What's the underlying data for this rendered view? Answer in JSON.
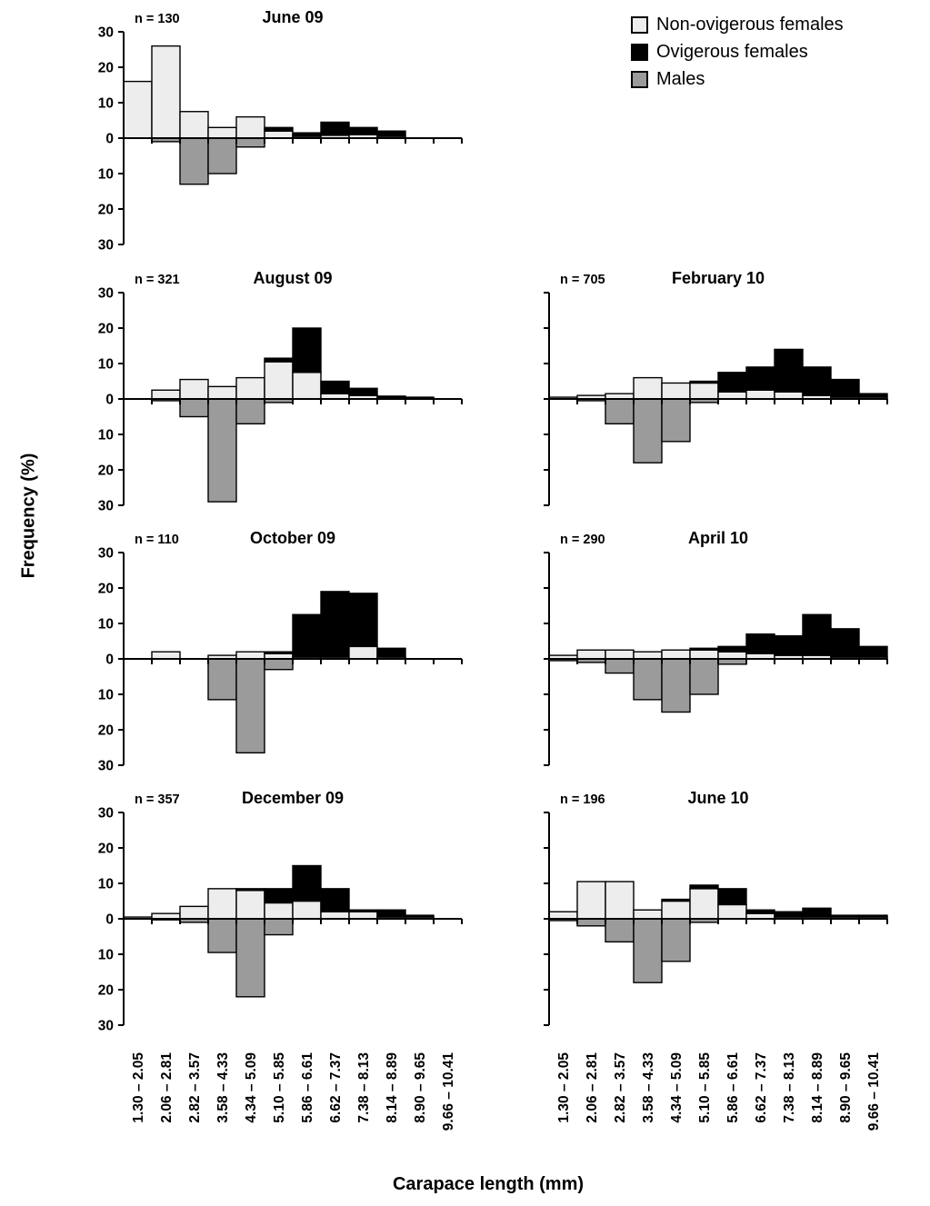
{
  "figure": {
    "legend": [
      {
        "key": "non_ovigerous_females",
        "label": "Non-ovigerous females",
        "color": "#ededed"
      },
      {
        "key": "ovigerous_females",
        "label": "Ovigerous females",
        "color": "#000000"
      },
      {
        "key": "males",
        "label": "Males",
        "color": "#9b9b9b"
      }
    ]
  },
  "chart_data": {
    "type": "bar",
    "subtype": "stacked-population-frequency",
    "xlabel": "Carapace length (mm)",
    "ylabel": "Frequency (%)",
    "ylim": [
      -30,
      30
    ],
    "yticks": [
      30,
      20,
      10,
      0,
      10,
      20,
      30
    ],
    "grid": false,
    "legend_position": "top-right",
    "colors": {
      "non_ovigerous_females": "#ededed",
      "ovigerous_females": "#000000",
      "males": "#9b9b9b"
    },
    "categories": [
      "1.30 – 2.05",
      "2.06 – 2.81",
      "2.82 – 3.57",
      "3.58 – 4.33",
      "4.34 – 5.09",
      "5.10 – 5.85",
      "5.86 – 6.61",
      "6.62 – 7.37",
      "7.38 – 8.13",
      "8.14 – 8.89",
      "8.90 – 9.65",
      "9.66 – 10.41"
    ],
    "panels": [
      {
        "title": "June 09",
        "n_label": "n = 130",
        "n": 130,
        "series": {
          "non_ovigerous_females": [
            16,
            26,
            7.5,
            3,
            6,
            2,
            0.5,
            0.8,
            1,
            0.5,
            0,
            0
          ],
          "ovigerous_females": [
            0,
            0,
            0,
            0,
            0,
            1,
            1,
            3.7,
            2,
            1.5,
            0,
            0
          ],
          "males": [
            0,
            1,
            13,
            10,
            2.5,
            0,
            0,
            0,
            0,
            0,
            0,
            0
          ]
        }
      },
      {
        "title": "August 09",
        "n_label": "n = 321",
        "n": 321,
        "series": {
          "non_ovigerous_females": [
            0,
            2.5,
            5.5,
            3.5,
            6,
            10.5,
            7.5,
            1.5,
            1,
            0.3,
            0.3,
            0
          ],
          "ovigerous_females": [
            0,
            0,
            0,
            0,
            0,
            1,
            12.5,
            3.5,
            2,
            0.5,
            0.2,
            0
          ],
          "males": [
            0,
            0.5,
            5,
            29,
            7,
            1,
            0,
            0,
            0,
            0,
            0,
            0
          ]
        }
      },
      {
        "title": "February 10",
        "n_label": "n = 705",
        "n": 705,
        "series": {
          "non_ovigerous_females": [
            0.5,
            1,
            1.5,
            6,
            4.5,
            4.5,
            2,
            2.5,
            2,
            1,
            0.5,
            0.5
          ],
          "ovigerous_females": [
            0,
            0,
            0,
            0,
            0,
            0.5,
            5.5,
            6.5,
            12,
            8,
            5,
            1
          ],
          "males": [
            0,
            0.5,
            7,
            18,
            12,
            1,
            0,
            0,
            0,
            0,
            0,
            0
          ]
        }
      },
      {
        "title": "October 09",
        "n_label": "n = 110",
        "n": 110,
        "series": {
          "non_ovigerous_females": [
            0,
            2,
            0,
            1,
            2,
            1.5,
            0.5,
            0.5,
            3.5,
            0.5,
            0,
            0
          ],
          "ovigerous_females": [
            0,
            0,
            0,
            0,
            0,
            0.5,
            12,
            18.5,
            15,
            2.5,
            0,
            0
          ],
          "males": [
            0,
            0,
            0,
            11.5,
            26.5,
            3,
            0,
            0,
            0,
            0,
            0,
            0
          ]
        }
      },
      {
        "title": "April 10",
        "n_label": "n = 290",
        "n": 290,
        "series": {
          "non_ovigerous_females": [
            1,
            2.5,
            2.5,
            2,
            2.5,
            2.5,
            2,
            1.5,
            1,
            1,
            0.5,
            0.5
          ],
          "ovigerous_females": [
            0,
            0,
            0,
            0,
            0,
            0.5,
            1.5,
            5.5,
            5.5,
            11.5,
            8,
            3
          ],
          "males": [
            0.5,
            1,
            4,
            11.5,
            15,
            10,
            1.5,
            0,
            0,
            0,
            0,
            0
          ]
        }
      },
      {
        "title": "December 09",
        "n_label": "n = 357",
        "n": 357,
        "series": {
          "non_ovigerous_females": [
            0.5,
            1.5,
            3.5,
            8.5,
            8,
            4.5,
            5,
            2,
            2,
            0.5,
            0.5,
            0
          ],
          "ovigerous_females": [
            0,
            0,
            0,
            0,
            0.5,
            4,
            10,
            6.5,
            0.5,
            2,
            0.5,
            0
          ],
          "males": [
            0,
            0.3,
            1,
            9.5,
            22,
            4.5,
            0,
            0,
            0,
            0,
            0,
            0
          ]
        }
      },
      {
        "title": "June 10",
        "n_label": "n = 196",
        "n": 196,
        "series": {
          "non_ovigerous_females": [
            2,
            10.5,
            10.5,
            2.5,
            5,
            8.5,
            4,
            1.5,
            0.5,
            0.5,
            0.5,
            0.5
          ],
          "ovigerous_females": [
            0,
            0,
            0,
            0,
            0.5,
            1,
            4.5,
            1,
            1.5,
            2.5,
            0.5,
            0.5
          ],
          "males": [
            0.5,
            2,
            6.5,
            18,
            12,
            1,
            0,
            0,
            0,
            0,
            0,
            0
          ]
        }
      }
    ]
  }
}
